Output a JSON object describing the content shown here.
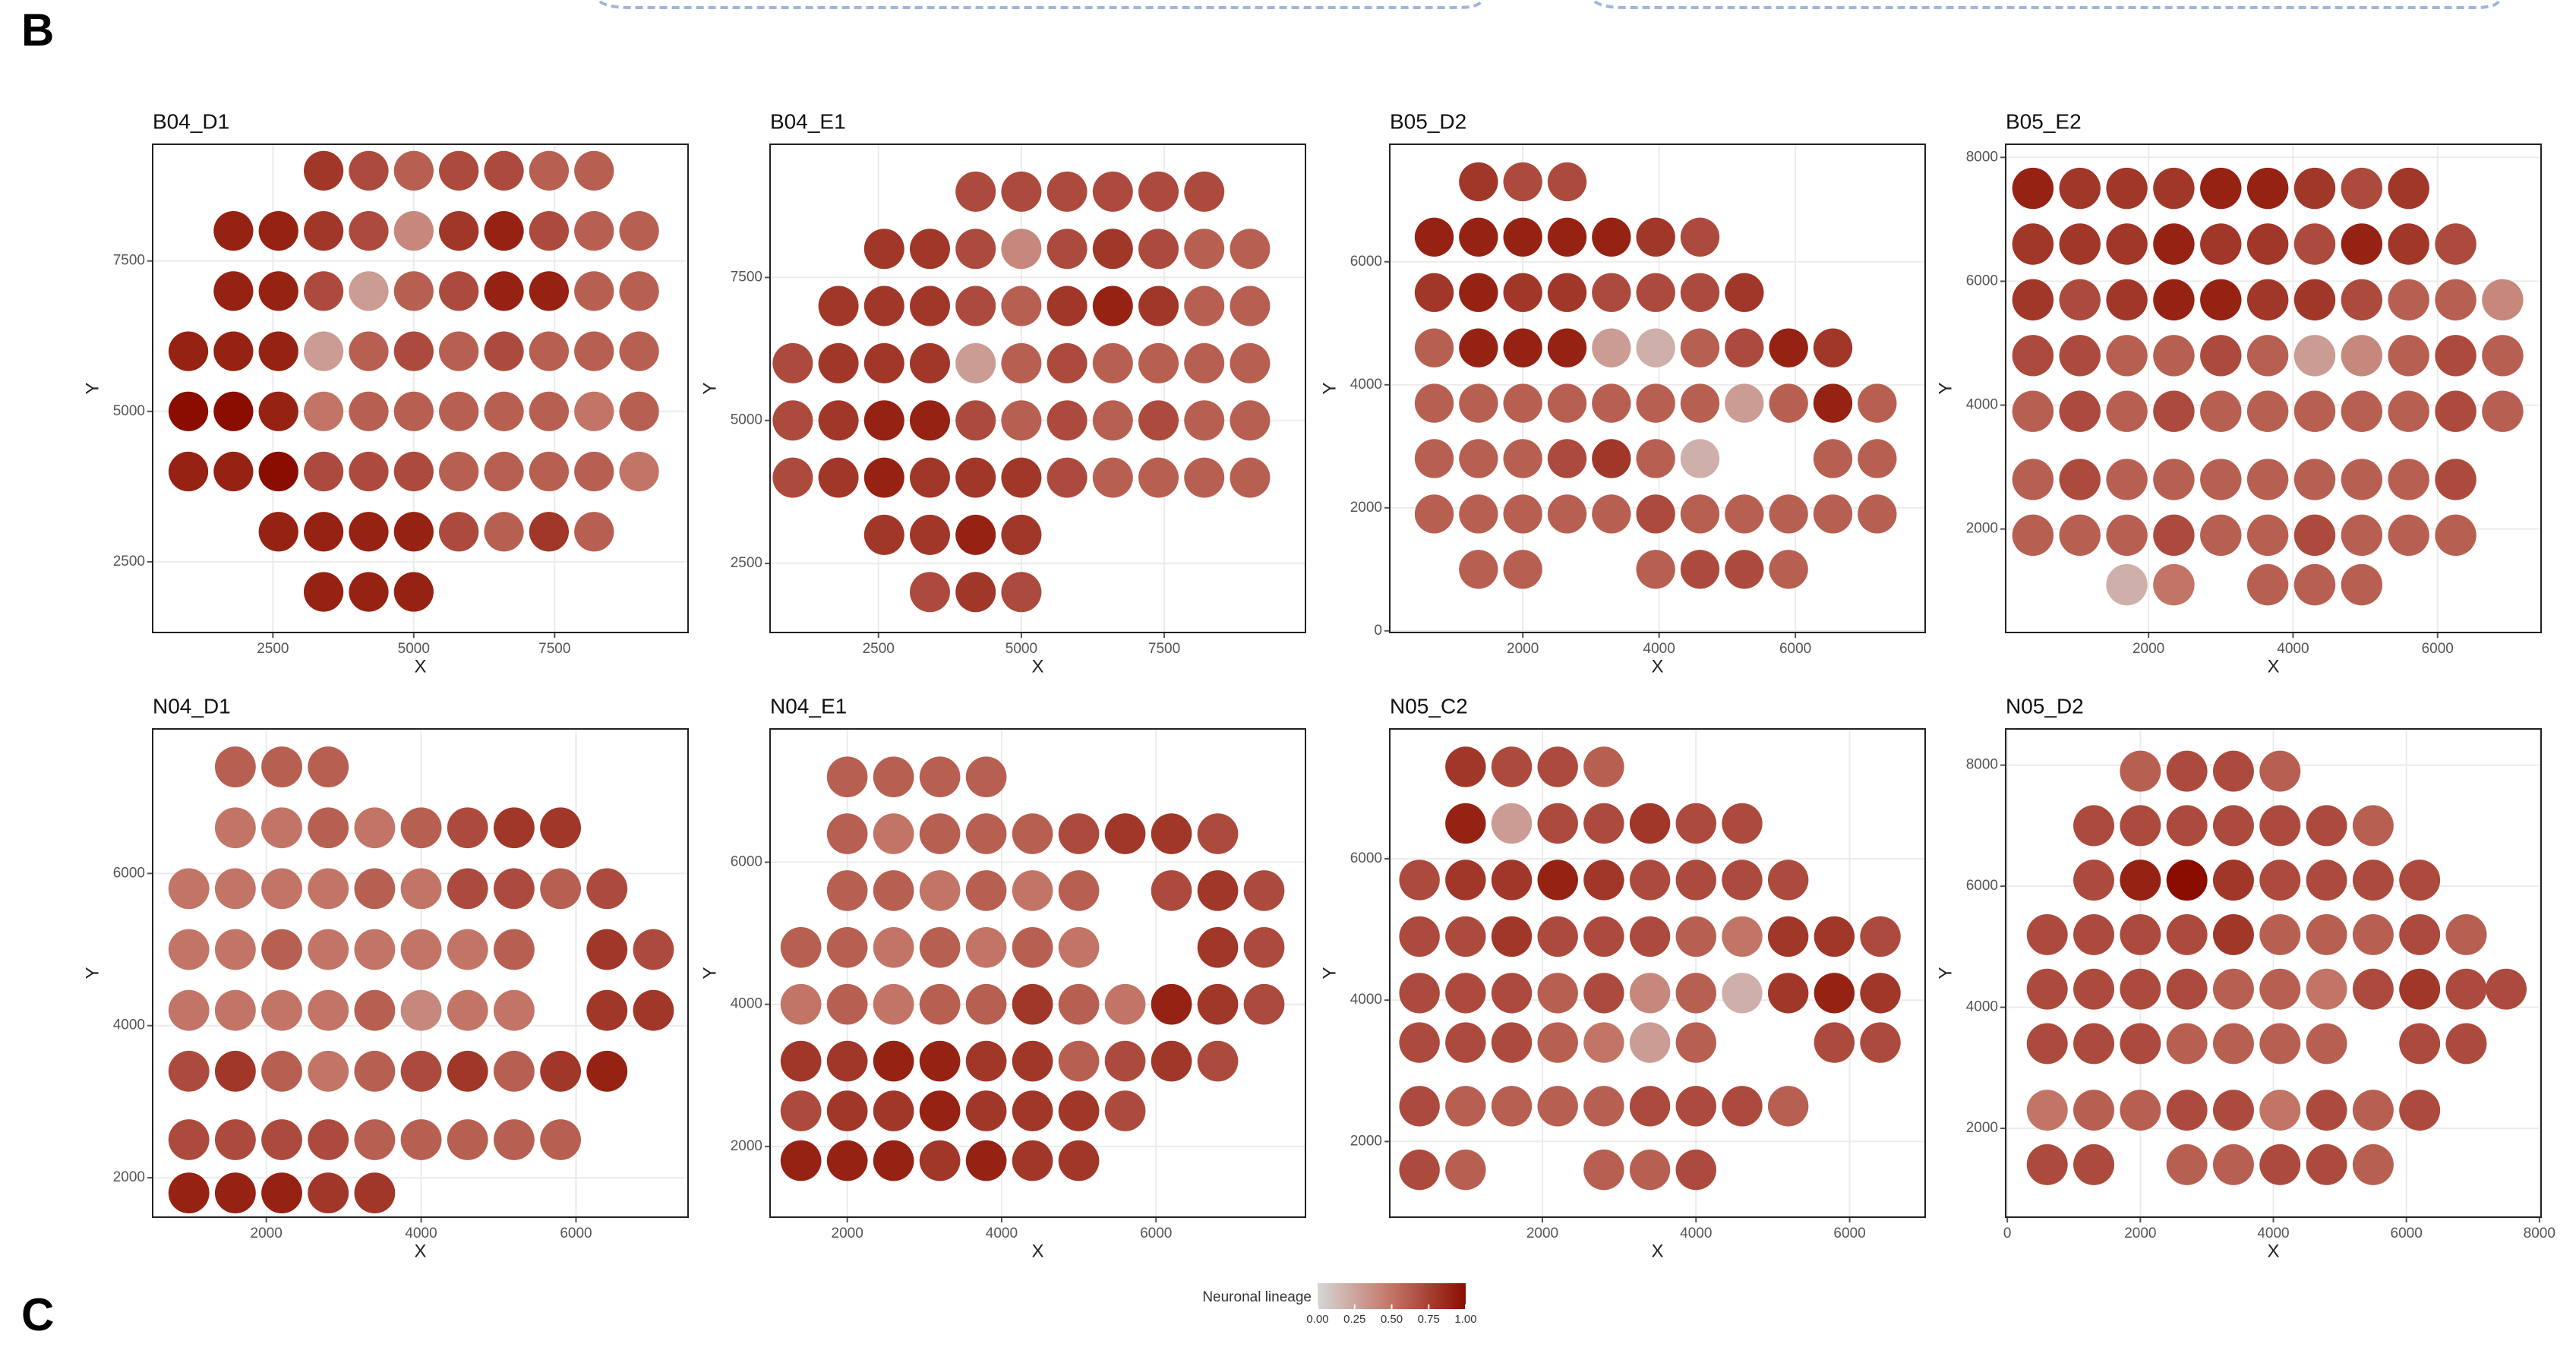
{
  "panel_labels": [
    "B",
    "C"
  ],
  "chart_data": [
    {
      "type": "spatial",
      "title": "B04_D1",
      "xlabel": "X",
      "ylabel": "Y",
      "xlim": [
        366,
        9868
      ],
      "ylim": [
        1325,
        9440
      ],
      "xticks": [
        2500,
        5000,
        7500
      ],
      "yticks": [
        2500,
        5000,
        7500
      ],
      "grid": true,
      "x": [
        1000,
        1800,
        2600,
        3400,
        4200,
        5000,
        5800,
        6600,
        7400,
        8200,
        9000
      ],
      "y": [
        9000,
        8000,
        7000,
        6000,
        5000,
        4000,
        3000,
        2000
      ],
      "values": [
        [
          null,
          null,
          null,
          0.8,
          0.7,
          0.6,
          0.7,
          0.7,
          0.6,
          0.6,
          null
        ],
        [
          null,
          0.9,
          0.9,
          0.8,
          0.7,
          0.4,
          0.8,
          0.9,
          0.7,
          0.6,
          0.6
        ],
        [
          null,
          0.9,
          0.9,
          0.7,
          0.3,
          0.6,
          0.7,
          0.9,
          0.9,
          0.6,
          0.6
        ],
        [
          0.9,
          0.9,
          0.9,
          0.3,
          0.6,
          0.7,
          0.6,
          0.7,
          0.6,
          0.6,
          0.6
        ],
        [
          1.0,
          1.0,
          0.9,
          0.5,
          0.6,
          0.6,
          0.6,
          0.6,
          0.6,
          0.5,
          0.6
        ],
        [
          0.9,
          0.9,
          1.0,
          0.7,
          0.7,
          0.7,
          0.6,
          0.6,
          0.6,
          0.6,
          0.5
        ],
        [
          null,
          null,
          0.9,
          0.9,
          0.9,
          0.9,
          0.7,
          0.6,
          0.8,
          0.6,
          null
        ],
        [
          null,
          null,
          null,
          0.9,
          0.9,
          0.9,
          null,
          null,
          null,
          null,
          null
        ]
      ]
    },
    {
      "type": "spatial",
      "title": "B04_E1",
      "xlabel": "X",
      "ylabel": "Y",
      "xlim": [
        603,
        9971
      ],
      "ylim": [
        1293,
        9828
      ],
      "xticks": [
        2500,
        5000,
        7500
      ],
      "yticks": [
        2500,
        5000,
        7500
      ],
      "grid": true,
      "x": [
        1000,
        1800,
        2600,
        3400,
        4200,
        5000,
        5800,
        6600,
        7400,
        8200,
        9000
      ],
      "y": [
        9000,
        8000,
        7000,
        6000,
        5000,
        4000,
        3000,
        2000
      ],
      "values": [
        [
          null,
          null,
          null,
          null,
          0.7,
          0.7,
          0.7,
          0.7,
          0.7,
          0.7,
          null
        ],
        [
          null,
          null,
          0.8,
          0.8,
          0.7,
          0.4,
          0.7,
          0.8,
          0.7,
          0.6,
          0.6
        ],
        [
          null,
          0.8,
          0.8,
          0.8,
          0.7,
          0.6,
          0.8,
          0.9,
          0.8,
          0.6,
          0.6
        ],
        [
          0.7,
          0.8,
          0.8,
          0.8,
          0.3,
          0.6,
          0.7,
          0.6,
          0.6,
          0.6,
          0.6
        ],
        [
          0.7,
          0.8,
          0.9,
          0.9,
          0.7,
          0.6,
          0.7,
          0.6,
          0.7,
          0.6,
          0.6
        ],
        [
          0.7,
          0.8,
          0.9,
          0.8,
          0.8,
          0.8,
          0.7,
          0.6,
          0.6,
          0.6,
          0.6
        ],
        [
          null,
          null,
          0.8,
          0.8,
          0.9,
          0.8,
          null,
          null,
          null,
          null,
          null
        ],
        [
          null,
          null,
          null,
          0.7,
          0.8,
          0.7,
          null,
          null,
          null,
          null,
          null
        ]
      ]
    },
    {
      "type": "spatial",
      "title": "B05_D2",
      "xlabel": "X",
      "ylabel": "Y",
      "xlim": [
        48,
        7904
      ],
      "ylim": [
        -27,
        7910
      ],
      "xticks": [
        2000,
        4000,
        6000
      ],
      "yticks": [
        0,
        2000,
        4000,
        6000
      ],
      "grid": true,
      "x": [
        700,
        1350,
        2000,
        2650,
        3300,
        3950,
        4600,
        5250,
        5900,
        6550,
        7200
      ],
      "y": [
        7300,
        6400,
        5500,
        4600,
        3700,
        2800,
        1900,
        1000
      ],
      "values": [
        [
          null,
          0.8,
          0.7,
          0.7,
          null,
          null,
          null,
          null,
          null,
          null,
          null
        ],
        [
          0.9,
          0.9,
          0.9,
          0.9,
          0.9,
          0.8,
          0.7,
          null,
          null,
          null,
          null
        ],
        [
          0.8,
          0.9,
          0.8,
          0.8,
          0.7,
          0.7,
          0.7,
          0.8,
          null,
          null,
          null
        ],
        [
          0.6,
          0.9,
          0.9,
          0.9,
          0.3,
          0.2,
          0.6,
          0.7,
          0.9,
          0.8,
          null
        ],
        [
          0.6,
          0.6,
          0.6,
          0.6,
          0.6,
          0.6,
          0.6,
          0.3,
          0.6,
          0.9,
          0.6
        ],
        [
          0.6,
          0.6,
          0.6,
          0.7,
          0.8,
          0.6,
          0.2,
          null,
          null,
          0.6,
          0.6
        ],
        [
          0.6,
          0.6,
          0.6,
          0.6,
          0.6,
          0.7,
          0.6,
          0.6,
          0.6,
          0.6,
          0.6
        ],
        [
          null,
          0.6,
          0.6,
          null,
          null,
          0.6,
          0.7,
          0.7,
          0.6,
          null,
          null
        ]
      ]
    },
    {
      "type": "spatial",
      "title": "B05_E2",
      "xlabel": "X",
      "ylabel": "Y",
      "xlim": [
        23,
        7432
      ],
      "ylim": [
        329,
        8212
      ],
      "xticks": [
        2000,
        4000,
        6000
      ],
      "yticks": [
        2000,
        4000,
        6000,
        8000
      ],
      "grid": true,
      "x": [
        400,
        1050,
        1700,
        2350,
        3000,
        3650,
        4300,
        4950,
        5600,
        6250,
        6900
      ],
      "y": [
        7500,
        6600,
        5700,
        4800,
        3900,
        2800,
        1900,
        1100
      ],
      "values": [
        [
          0.9,
          0.8,
          0.8,
          0.8,
          0.9,
          0.9,
          0.8,
          0.7,
          0.8,
          null,
          null
        ],
        [
          0.8,
          0.8,
          0.8,
          0.9,
          0.8,
          0.8,
          0.7,
          0.9,
          0.8,
          0.7,
          null
        ],
        [
          0.8,
          0.7,
          0.8,
          0.9,
          0.9,
          0.8,
          0.8,
          0.7,
          0.6,
          0.6,
          0.4
        ],
        [
          0.7,
          0.7,
          0.6,
          0.6,
          0.7,
          0.6,
          0.3,
          0.4,
          0.6,
          0.7,
          0.6
        ],
        [
          0.6,
          0.7,
          0.6,
          0.7,
          0.6,
          0.6,
          0.6,
          0.6,
          0.6,
          0.7,
          0.6
        ],
        [
          0.6,
          0.7,
          0.6,
          0.6,
          0.6,
          0.6,
          0.6,
          0.6,
          0.6,
          0.7,
          null
        ],
        [
          0.6,
          0.6,
          0.6,
          0.7,
          0.6,
          0.6,
          0.7,
          0.6,
          0.6,
          0.6,
          null
        ],
        [
          null,
          null,
          0.2,
          0.5,
          null,
          0.6,
          0.6,
          0.6,
          null,
          null,
          null
        ]
      ]
    },
    {
      "type": "spatial",
      "title": "N04_D1",
      "xlabel": "X",
      "ylabel": "Y",
      "xlim": [
        532,
        7447
      ],
      "ylim": [
        1482,
        7900
      ],
      "xticks": [
        2000,
        4000,
        6000
      ],
      "yticks": [
        2000,
        4000,
        6000
      ],
      "grid": true,
      "x": [
        1000,
        1600,
        2200,
        2800,
        3400,
        4000,
        4600,
        5200,
        5800,
        6400,
        7000
      ],
      "y": [
        7400,
        6600,
        5800,
        5000,
        4200,
        3400,
        2500,
        1800
      ],
      "values": [
        [
          null,
          0.6,
          0.6,
          0.6,
          null,
          null,
          null,
          null,
          null,
          null,
          null
        ],
        [
          null,
          0.5,
          0.5,
          0.6,
          0.5,
          0.6,
          0.7,
          0.8,
          0.8,
          null,
          null
        ],
        [
          0.5,
          0.5,
          0.5,
          0.5,
          0.6,
          0.5,
          0.7,
          0.7,
          0.6,
          0.7,
          null
        ],
        [
          0.5,
          0.5,
          0.6,
          0.5,
          0.5,
          0.5,
          0.5,
          0.6,
          null,
          0.8,
          0.7
        ],
        [
          0.5,
          0.5,
          0.5,
          0.5,
          0.6,
          0.4,
          0.5,
          0.5,
          null,
          0.8,
          0.8
        ],
        [
          0.7,
          0.8,
          0.6,
          0.5,
          0.6,
          0.7,
          0.8,
          0.6,
          0.8,
          0.9,
          null
        ],
        [
          0.7,
          0.7,
          0.7,
          0.7,
          0.6,
          0.6,
          0.6,
          0.6,
          0.6,
          null,
          null
        ],
        [
          0.9,
          0.9,
          0.9,
          0.8,
          0.8,
          null,
          null,
          null,
          null,
          null,
          null
        ]
      ]
    },
    {
      "type": "spatial",
      "title": "N04_E1",
      "xlabel": "X",
      "ylabel": "Y",
      "xlim": [
        1000,
        7936
      ],
      "ylim": [
        1005,
        7875
      ],
      "xticks": [
        2000,
        4000,
        6000
      ],
      "yticks": [
        2000,
        4000,
        6000
      ],
      "grid": true,
      "x": [
        1400,
        2000,
        2600,
        3200,
        3800,
        4400,
        5000,
        5600,
        6200,
        6800,
        7400
      ],
      "y": [
        7200,
        6400,
        5600,
        4800,
        4000,
        3200,
        2500,
        1800
      ],
      "values": [
        [
          null,
          0.6,
          0.6,
          0.6,
          0.6,
          null,
          null,
          null,
          null,
          null,
          null
        ],
        [
          null,
          0.6,
          0.5,
          0.6,
          0.6,
          0.6,
          0.7,
          0.8,
          0.8,
          0.7,
          null
        ],
        [
          null,
          0.6,
          0.6,
          0.5,
          0.6,
          0.5,
          0.6,
          null,
          0.7,
          0.8,
          0.7
        ],
        [
          0.6,
          0.6,
          0.5,
          0.6,
          0.5,
          0.6,
          0.5,
          null,
          null,
          0.8,
          0.7
        ],
        [
          0.5,
          0.6,
          0.5,
          0.6,
          0.6,
          0.8,
          0.6,
          0.5,
          0.9,
          0.8,
          0.7
        ],
        [
          0.8,
          0.8,
          0.9,
          0.9,
          0.8,
          0.8,
          0.6,
          0.7,
          0.8,
          0.7,
          null
        ],
        [
          0.7,
          0.8,
          0.8,
          0.9,
          0.8,
          0.8,
          0.8,
          0.7,
          null,
          null,
          null
        ],
        [
          0.9,
          0.9,
          0.9,
          0.8,
          0.9,
          0.8,
          0.8,
          null,
          null,
          null,
          null
        ]
      ]
    },
    {
      "type": "spatial",
      "title": "N05_C2",
      "xlabel": "X",
      "ylabel": "Y",
      "xlim": [
        13,
        6983
      ],
      "ylim": [
        930,
        7837
      ],
      "xticks": [
        2000,
        4000,
        6000
      ],
      "yticks": [
        2000,
        4000,
        6000
      ],
      "grid": true,
      "x": [
        400,
        1000,
        1600,
        2200,
        2800,
        3400,
        4000,
        4600,
        5200,
        5800,
        6400
      ],
      "y": [
        7300,
        6500,
        5700,
        4900,
        4100,
        3400,
        2500,
        1600
      ],
      "values": [
        [
          null,
          0.8,
          0.7,
          0.7,
          0.6,
          null,
          null,
          null,
          null,
          null,
          null
        ],
        [
          null,
          0.9,
          0.3,
          0.7,
          0.7,
          0.8,
          0.7,
          0.7,
          null,
          null,
          null
        ],
        [
          0.7,
          0.8,
          0.8,
          0.9,
          0.8,
          0.7,
          0.7,
          0.7,
          0.7,
          null,
          null
        ],
        [
          0.7,
          0.7,
          0.8,
          0.7,
          0.7,
          0.7,
          0.6,
          0.5,
          0.8,
          0.8,
          0.7
        ],
        [
          0.7,
          0.7,
          0.7,
          0.6,
          0.7,
          0.4,
          0.6,
          0.2,
          0.8,
          0.9,
          0.8
        ],
        [
          0.7,
          0.7,
          0.7,
          0.6,
          0.5,
          0.3,
          0.6,
          null,
          null,
          0.7,
          0.7
        ],
        [
          0.7,
          0.6,
          0.6,
          0.6,
          0.6,
          0.7,
          0.7,
          0.7,
          0.6,
          null,
          null
        ],
        [
          0.7,
          0.6,
          null,
          null,
          0.6,
          0.6,
          0.7,
          null,
          null,
          null,
          null
        ]
      ]
    },
    {
      "type": "spatial",
      "title": "N05_D2",
      "xlabel": "X",
      "ylabel": "Y",
      "xlim": [
        -25,
        8025
      ],
      "ylim": [
        533,
        8598
      ],
      "xticks": [
        0,
        2000,
        4000,
        6000,
        8000
      ],
      "yticks": [
        2000,
        4000,
        6000,
        8000
      ],
      "grid": true,
      "x": [
        600,
        1300,
        2000,
        2700,
        3400,
        4100,
        4800,
        5500,
        6200,
        6900,
        7500
      ],
      "y": [
        7900,
        7000,
        6100,
        5200,
        4300,
        3400,
        2300,
        1400
      ],
      "values": [
        [
          null,
          null,
          0.6,
          0.7,
          0.7,
          0.6,
          null,
          null,
          null,
          null,
          null
        ],
        [
          null,
          0.7,
          0.7,
          0.7,
          0.7,
          0.7,
          0.7,
          0.6,
          null,
          null,
          null
        ],
        [
          null,
          0.7,
          0.9,
          1.0,
          0.8,
          0.7,
          0.7,
          0.7,
          0.7,
          null,
          null
        ],
        [
          0.7,
          0.7,
          0.7,
          0.7,
          0.8,
          0.6,
          0.6,
          0.6,
          0.7,
          0.6,
          null
        ],
        [
          0.7,
          0.7,
          0.7,
          0.7,
          0.6,
          0.6,
          0.5,
          0.7,
          0.8,
          0.7,
          0.7
        ],
        [
          0.7,
          0.7,
          0.7,
          0.6,
          0.6,
          0.6,
          0.6,
          null,
          0.7,
          0.7,
          null
        ],
        [
          0.5,
          0.6,
          0.6,
          0.7,
          0.7,
          0.5,
          0.7,
          0.6,
          0.7,
          null,
          null
        ],
        [
          0.7,
          0.7,
          null,
          0.6,
          0.6,
          0.7,
          0.7,
          0.6,
          null,
          null,
          null
        ]
      ]
    }
  ],
  "colorbar": {
    "title": "Neuronal lineage",
    "lim": [
      0,
      1
    ],
    "ticks": [
      {
        "value": 0,
        "label": "0.00"
      },
      {
        "value": 0.25,
        "label": "0.25"
      },
      {
        "value": 0.5,
        "label": "0.50"
      },
      {
        "value": 0.75,
        "label": "0.75"
      },
      {
        "value": 1,
        "label": "1.00"
      }
    ],
    "colors": [
      "#d6d6d6",
      "#c27566",
      "#8b0d00"
    ]
  }
}
